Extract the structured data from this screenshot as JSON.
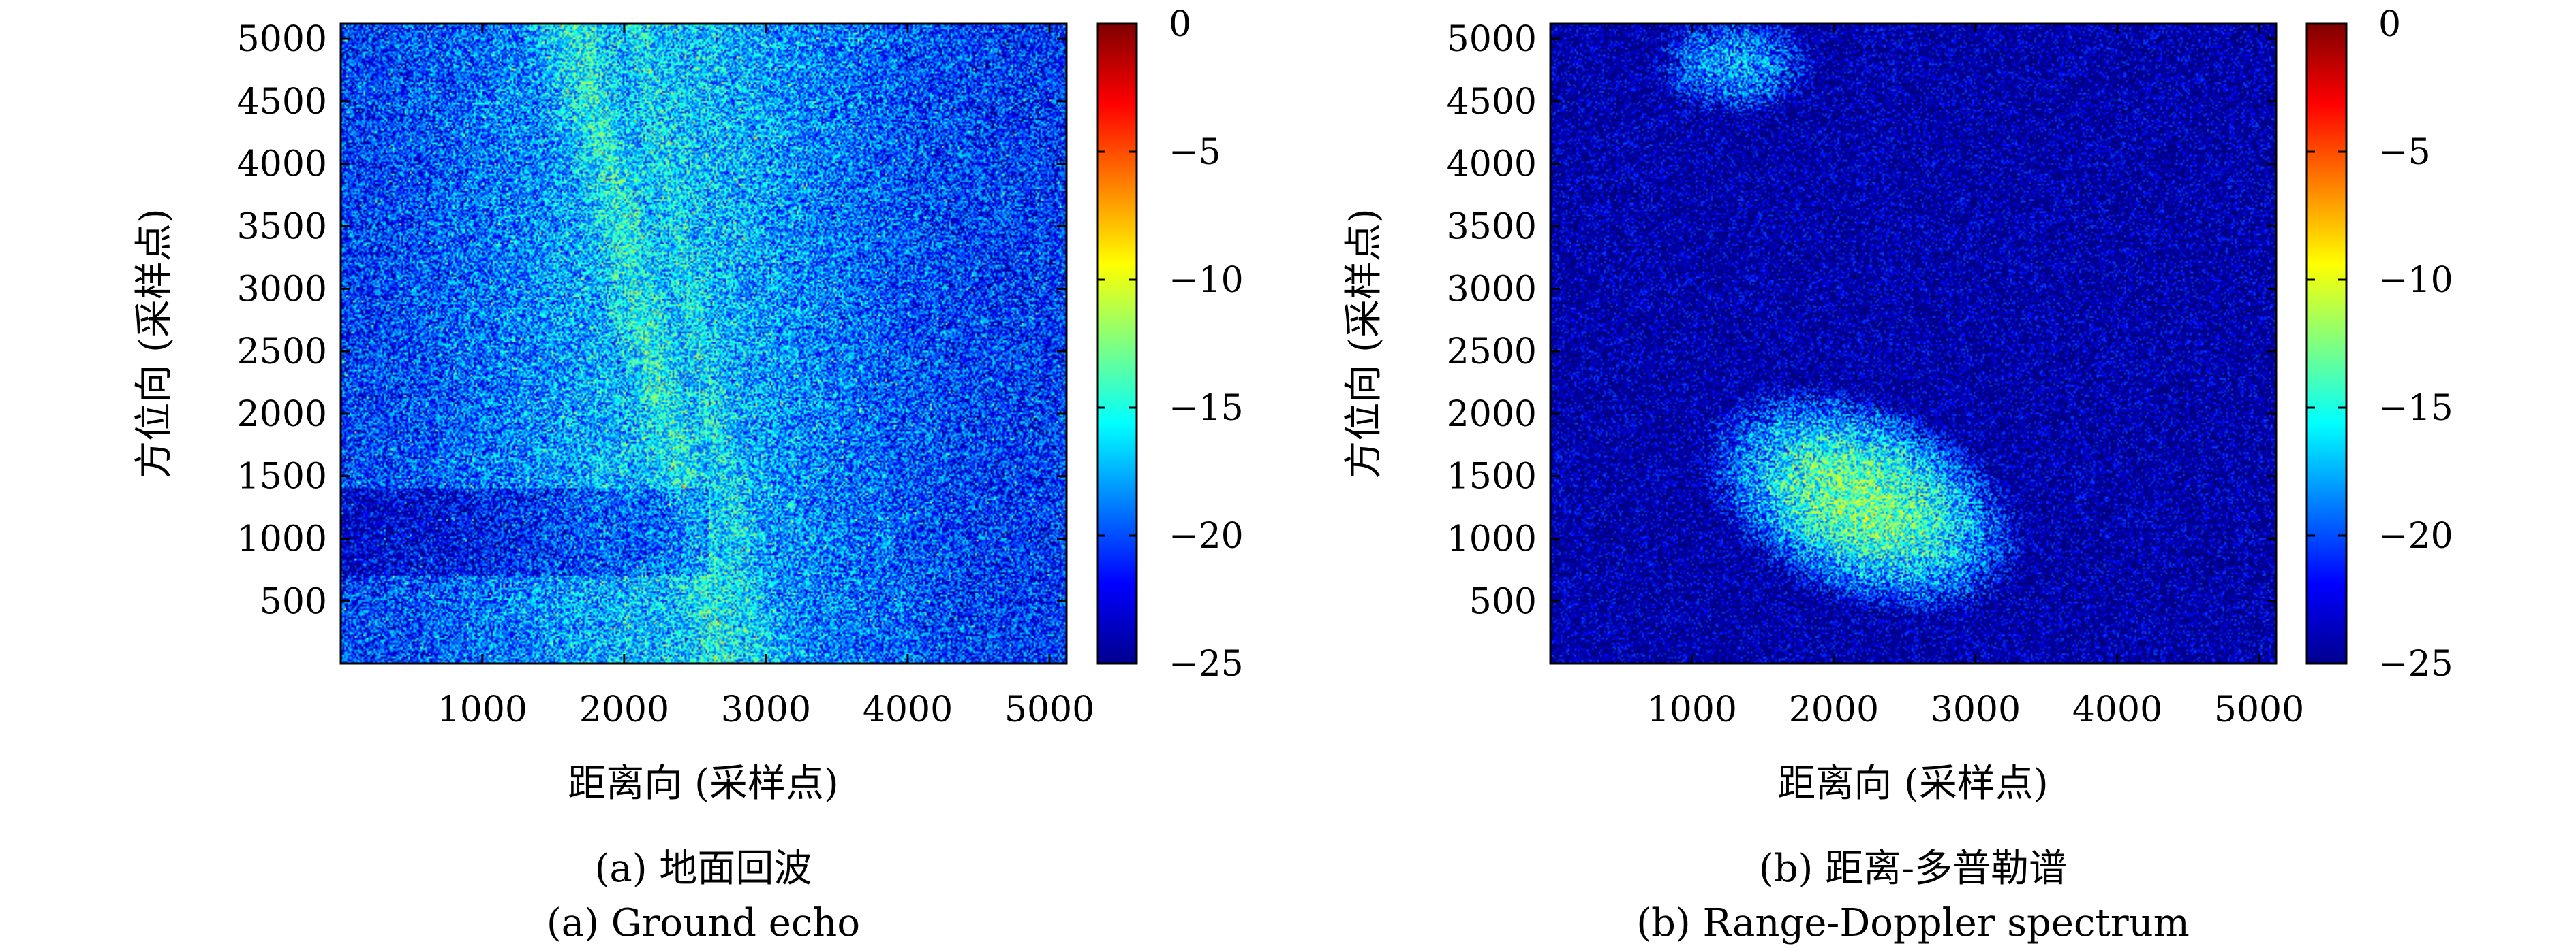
{
  "chart_data": [
    {
      "type": "heatmap",
      "caption_cn": "(a) 地面回波",
      "caption_en": "(a) Ground echo",
      "xlabel": "距离向 (采样点)",
      "ylabel": "方位向 (采样点)",
      "xlim": [
        1,
        5120
      ],
      "ylim": [
        1,
        5120
      ],
      "xticks": [
        1000,
        2000,
        3000,
        4000,
        5000
      ],
      "yticks": [
        500,
        1000,
        1500,
        2000,
        2500,
        3000,
        3500,
        4000,
        4500,
        5000
      ],
      "colorbar": {
        "range": [
          -25,
          0
        ],
        "ticks": [
          0,
          -5,
          -10,
          -15,
          -20,
          -25
        ],
        "tick_labels": [
          "0",
          "−5",
          "−10",
          "−15",
          "−20",
          "−25"
        ],
        "colormap": "jet"
      },
      "description_features": {
        "background_level_db": -22,
        "stripes": [
          {
            "x_at_top": 1650,
            "x_at_bottom": 2700,
            "level_db": -15
          },
          {
            "x_at_top": 2100,
            "x_at_bottom": 2950,
            "level_db": -16
          },
          {
            "x_at_top": 3100,
            "x_at_bottom": 4000,
            "level_db": -19
          }
        ],
        "dark_band_azimuth": [
          700,
          1400
        ]
      }
    },
    {
      "type": "heatmap",
      "caption_cn": "(b) 距离-多普勒谱",
      "caption_en": "(b) Range-Doppler spectrum",
      "xlabel": "距离向 (采样点)",
      "ylabel": "方位向 (采样点)",
      "xlim": [
        1,
        5120
      ],
      "ylim": [
        1,
        5120
      ],
      "xticks": [
        1000,
        2000,
        3000,
        4000,
        5000
      ],
      "yticks": [
        500,
        1000,
        1500,
        2000,
        2500,
        3000,
        3500,
        4000,
        4500,
        5000
      ],
      "colorbar": {
        "range": [
          -25,
          0
        ],
        "ticks": [
          0,
          -5,
          -10,
          -15,
          -20,
          -25
        ],
        "tick_labels": [
          "0",
          "−5",
          "−10",
          "−15",
          "−20",
          "−25"
        ],
        "colormap": "jet"
      },
      "description_features": {
        "background_level_db": -25,
        "blobs": [
          {
            "center_x": 2200,
            "center_y": 1300,
            "level_db": -13
          },
          {
            "center_x": 1300,
            "center_y": 4800,
            "level_db": -18
          }
        ]
      }
    }
  ]
}
